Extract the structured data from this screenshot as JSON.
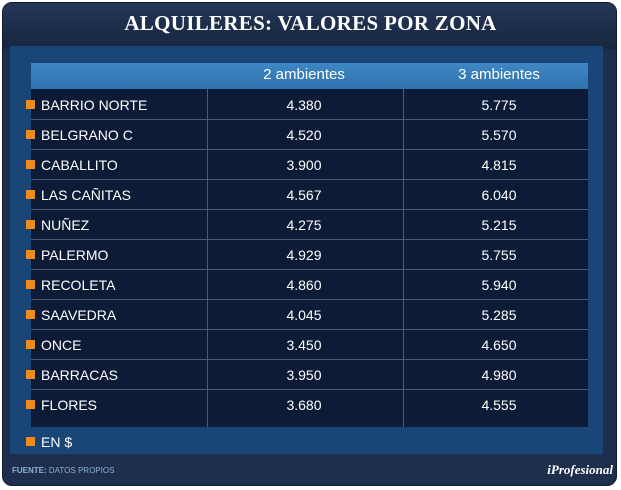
{
  "title": "ALQUILERES: VALORES POR ZONA",
  "chart_data": {
    "type": "table",
    "title": "ALQUILERES: VALORES POR ZONA",
    "columns": [
      "2 ambientes",
      "3 ambientes"
    ],
    "rows": [
      {
        "zone": "BARRIO NORTE",
        "v2": "4.380",
        "v3": "5.775"
      },
      {
        "zone": "BELGRANO C",
        "v2": "4.520",
        "v3": "5.570"
      },
      {
        "zone": "CABALLITO",
        "v2": "3.900",
        "v3": "4.815"
      },
      {
        "zone": "LAS CAÑITAS",
        "v2": "4.567",
        "v3": "6.040"
      },
      {
        "zone": "NUÑEZ",
        "v2": "4.275",
        "v3": "5.215"
      },
      {
        "zone": "PALERMO",
        "v2": "4.929",
        "v3": "5.755"
      },
      {
        "zone": "RECOLETA",
        "v2": "4.860",
        "v3": "5.940"
      },
      {
        "zone": "SAAVEDRA",
        "v2": "4.045",
        "v3": "5.285"
      },
      {
        "zone": "ONCE",
        "v2": "3.450",
        "v3": "4.650"
      },
      {
        "zone": "BARRACAS",
        "v2": "3.950",
        "v3": "4.980"
      },
      {
        "zone": "FLORES",
        "v2": "3.680",
        "v3": "4.555"
      }
    ],
    "unit_note": "EN $"
  },
  "footer": {
    "source_label": "FUENTE:",
    "source_text": "DATOS PROPIOS",
    "logo": "iProfesional"
  },
  "colors": {
    "background": "#1d2f4c",
    "panel": "#1a4677",
    "table": "#0d1b36",
    "header": "#3a82c0",
    "bullet": "#f08a1a"
  }
}
